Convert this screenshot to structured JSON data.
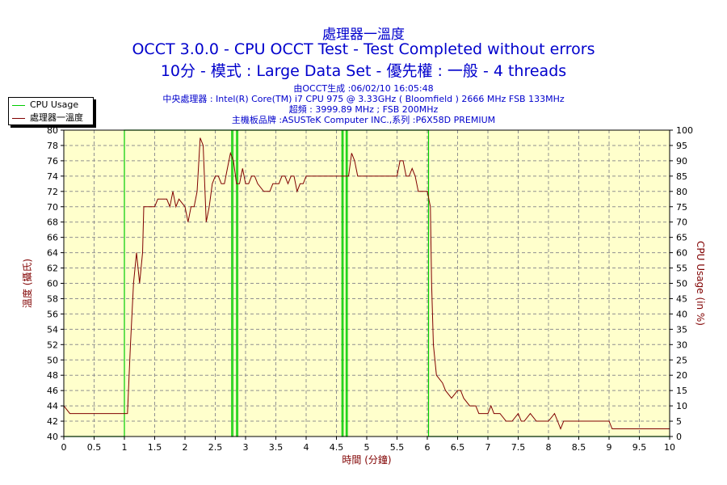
{
  "header": {
    "title1": "處理器一溫度",
    "title2": "OCCT 3.0.0 - CPU OCCT Test - Test Completed without errors",
    "title3": "10分 - 模式 : Large Data Set - 優先權 : 一般 - 4 threads",
    "info1": "由OCCT生成 :06/02/10 16:05:48",
    "info2": "中央處理器 : Intel(R) Core(TM) i7 CPU 975 @ 3.33GHz ( Bloomfield ) 2666 MHz FSB 133MHz",
    "info3": "超頻 : 3999.89 MHz ; FSB 200MHz",
    "info4": "主機板品牌 :ASUSTeK Computer INC.,系列 :P6X58D PREMIUM"
  },
  "colors": {
    "cpu_usage": "#00cc00",
    "temperature": "#800000",
    "text": "#0000cc",
    "axis_label": "#800000"
  },
  "chart_data": {
    "type": "line",
    "xlabel": "時間 (分鐘)",
    "ylabel_left": "溫度 (攝氏)",
    "ylabel_right": "CPU Usage (in %)",
    "xlim": [
      0,
      10
    ],
    "ylim_left": [
      40,
      80
    ],
    "ylim_right": [
      0,
      100
    ],
    "x_ticks": [
      "0",
      "0.5",
      "1",
      "1.5",
      "2",
      "2.5",
      "3",
      "3.5",
      "4",
      "4.5",
      "5",
      "5.5",
      "6",
      "6.5",
      "7",
      "7.5",
      "8",
      "8.5",
      "9",
      "9.5",
      "10"
    ],
    "y_ticks_left": [
      "40",
      "42",
      "44",
      "46",
      "48",
      "50",
      "52",
      "54",
      "56",
      "58",
      "60",
      "62",
      "64",
      "66",
      "68",
      "70",
      "72",
      "74",
      "76",
      "78",
      "80"
    ],
    "y_ticks_right": [
      "0",
      "5",
      "10",
      "15",
      "20",
      "25",
      "30",
      "35",
      "40",
      "45",
      "50",
      "55",
      "60",
      "65",
      "70",
      "75",
      "80",
      "85",
      "90",
      "95",
      "100"
    ],
    "grid": true,
    "legend_position": "top-left",
    "series": [
      {
        "name": "CPU Usage",
        "axis": "right",
        "points": [
          [
            0,
            0
          ],
          [
            1.0,
            0
          ],
          [
            1.0,
            100
          ],
          [
            1.05,
            100
          ],
          [
            2.77,
            100
          ],
          [
            2.77,
            0
          ],
          [
            2.79,
            0
          ],
          [
            2.79,
            100
          ],
          [
            2.85,
            100
          ],
          [
            2.85,
            0
          ],
          [
            2.87,
            0
          ],
          [
            2.87,
            100
          ],
          [
            4.59,
            100
          ],
          [
            4.59,
            0
          ],
          [
            4.61,
            0
          ],
          [
            4.61,
            100
          ],
          [
            4.66,
            100
          ],
          [
            4.66,
            0
          ],
          [
            4.68,
            0
          ],
          [
            4.68,
            100
          ],
          [
            6.02,
            100
          ],
          [
            6.02,
            0
          ],
          [
            10,
            0
          ]
        ]
      },
      {
        "name": "處理器一溫度",
        "axis": "left",
        "points": [
          [
            0.0,
            44
          ],
          [
            0.1,
            43
          ],
          [
            0.5,
            43
          ],
          [
            1.0,
            43
          ],
          [
            1.05,
            43
          ],
          [
            1.1,
            52
          ],
          [
            1.15,
            60
          ],
          [
            1.2,
            64
          ],
          [
            1.25,
            60
          ],
          [
            1.3,
            64
          ],
          [
            1.32,
            70
          ],
          [
            1.5,
            70
          ],
          [
            1.55,
            71
          ],
          [
            1.7,
            71
          ],
          [
            1.75,
            70
          ],
          [
            1.8,
            72
          ],
          [
            1.85,
            70
          ],
          [
            1.9,
            71
          ],
          [
            2.0,
            70
          ],
          [
            2.05,
            68
          ],
          [
            2.1,
            70
          ],
          [
            2.15,
            70
          ],
          [
            2.2,
            72
          ],
          [
            2.25,
            79
          ],
          [
            2.3,
            78
          ],
          [
            2.35,
            68
          ],
          [
            2.4,
            70
          ],
          [
            2.45,
            73
          ],
          [
            2.5,
            74
          ],
          [
            2.55,
            74
          ],
          [
            2.6,
            73
          ],
          [
            2.65,
            73
          ],
          [
            2.7,
            75
          ],
          [
            2.75,
            77
          ],
          [
            2.8,
            76
          ],
          [
            2.85,
            73
          ],
          [
            2.9,
            73
          ],
          [
            2.95,
            75
          ],
          [
            3.0,
            73
          ],
          [
            3.05,
            73
          ],
          [
            3.1,
            74
          ],
          [
            3.15,
            74
          ],
          [
            3.2,
            73
          ],
          [
            3.3,
            72
          ],
          [
            3.4,
            72
          ],
          [
            3.45,
            73
          ],
          [
            3.55,
            73
          ],
          [
            3.6,
            74
          ],
          [
            3.65,
            74
          ],
          [
            3.7,
            73
          ],
          [
            3.75,
            74
          ],
          [
            3.8,
            74
          ],
          [
            3.85,
            72
          ],
          [
            3.9,
            73
          ],
          [
            3.95,
            73
          ],
          [
            4.0,
            74
          ],
          [
            4.5,
            74
          ],
          [
            4.6,
            74
          ],
          [
            4.7,
            74
          ],
          [
            4.75,
            77
          ],
          [
            4.8,
            76
          ],
          [
            4.85,
            74
          ],
          [
            5.5,
            74
          ],
          [
            5.55,
            76
          ],
          [
            5.6,
            76
          ],
          [
            5.65,
            74
          ],
          [
            5.7,
            74
          ],
          [
            5.75,
            75
          ],
          [
            5.8,
            74
          ],
          [
            5.85,
            72
          ],
          [
            5.9,
            72
          ],
          [
            5.95,
            72
          ],
          [
            5.97,
            72
          ],
          [
            6.0,
            72
          ],
          [
            6.05,
            70
          ],
          [
            6.07,
            60
          ],
          [
            6.1,
            52
          ],
          [
            6.15,
            48
          ],
          [
            6.25,
            47
          ],
          [
            6.3,
            46
          ],
          [
            6.4,
            45
          ],
          [
            6.5,
            46
          ],
          [
            6.55,
            46
          ],
          [
            6.6,
            45
          ],
          [
            6.7,
            44
          ],
          [
            6.8,
            44
          ],
          [
            6.85,
            43
          ],
          [
            7.0,
            43
          ],
          [
            7.05,
            44
          ],
          [
            7.1,
            43
          ],
          [
            7.2,
            43
          ],
          [
            7.3,
            42
          ],
          [
            7.4,
            42
          ],
          [
            7.5,
            43
          ],
          [
            7.55,
            42
          ],
          [
            7.6,
            42
          ],
          [
            7.7,
            43
          ],
          [
            7.8,
            42
          ],
          [
            7.9,
            42
          ],
          [
            8.0,
            42
          ],
          [
            8.1,
            43
          ],
          [
            8.15,
            42
          ],
          [
            8.2,
            41
          ],
          [
            8.25,
            42
          ],
          [
            8.5,
            42
          ],
          [
            9.0,
            42
          ],
          [
            9.05,
            41
          ],
          [
            9.5,
            41
          ],
          [
            10,
            41
          ]
        ]
      }
    ]
  }
}
